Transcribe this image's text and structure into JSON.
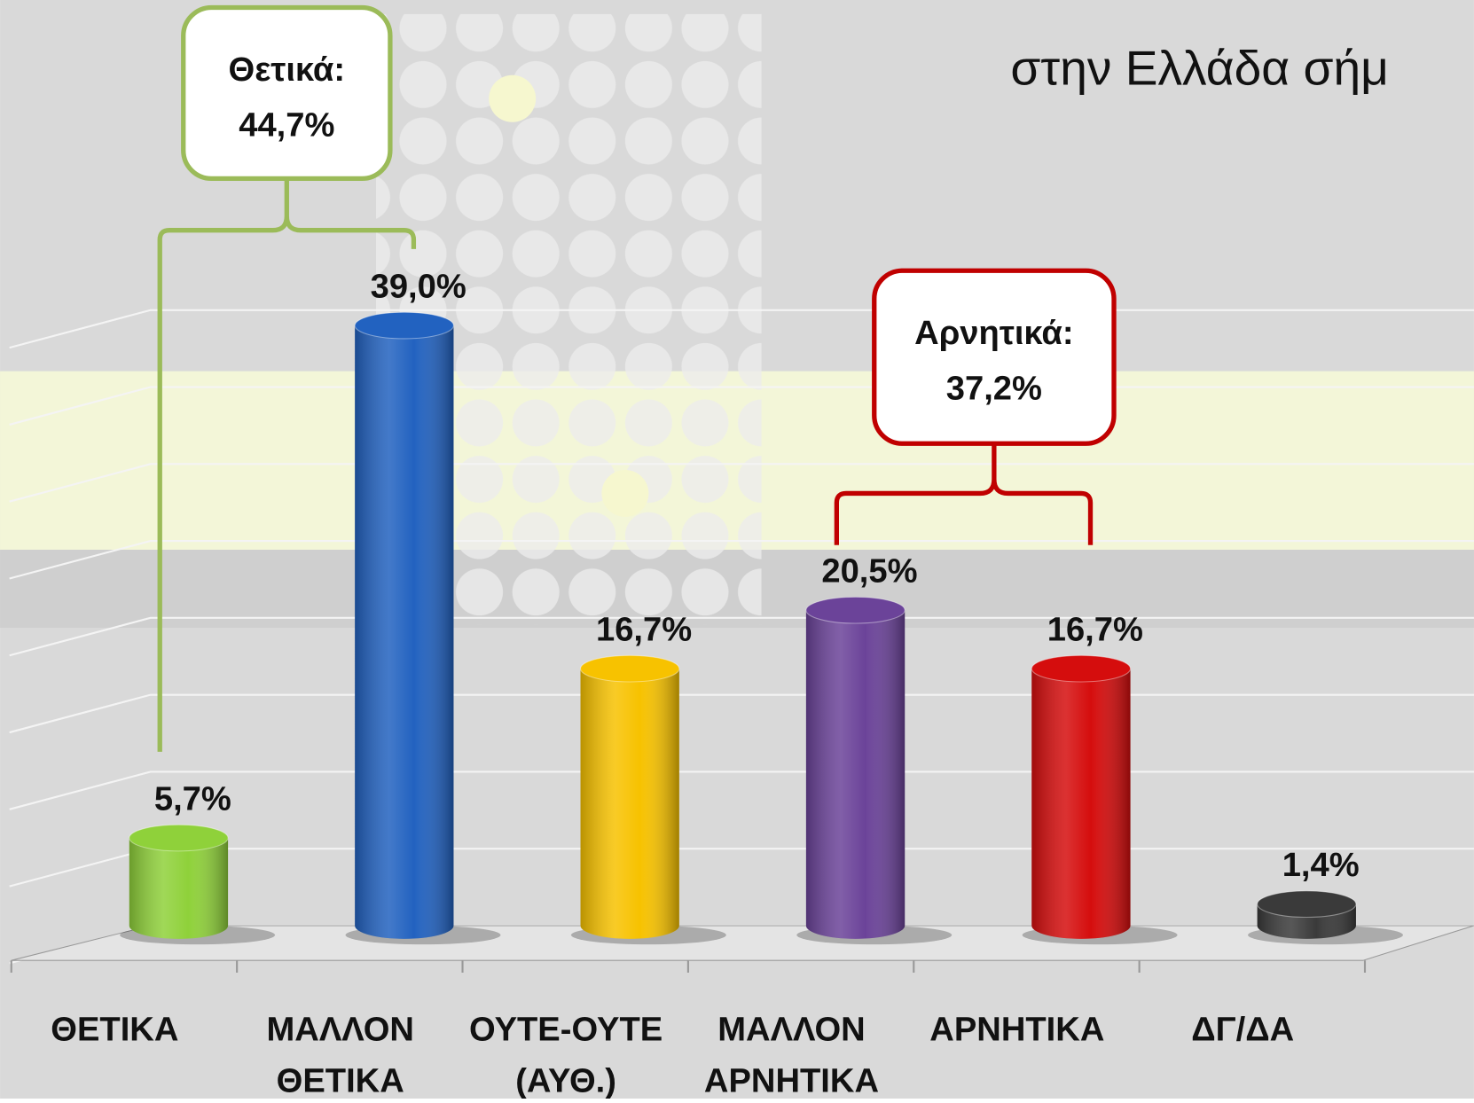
{
  "chart_data": {
    "type": "bar",
    "title": "στην Ελλάδα σήμ",
    "categories": [
      [
        "ΘΕΤΙΚΑ"
      ],
      [
        "ΜΑΛΛΟΝ",
        "ΘΕΤΙΚΑ"
      ],
      [
        "ΟΥΤΕ-ΟΥΤΕ",
        "(ΑΥΘ.)"
      ],
      [
        "ΜΑΛΛΟΝ",
        "ΑΡΝΗΤΙΚΑ"
      ],
      [
        "ΑΡΝΗΤΙΚΑ"
      ],
      [
        "ΔΓ/ΔΑ"
      ]
    ],
    "values": [
      5.7,
      39.0,
      16.7,
      20.5,
      16.7,
      1.4
    ],
    "value_labels": [
      "5,7%",
      "39,0%",
      "16,7%",
      "20,5%",
      "16,7%",
      "1,4%"
    ],
    "colors": [
      "#8fd13a",
      "#2262c0",
      "#f7c200",
      "#6b4399",
      "#d50d0d",
      "#3a3a3a"
    ],
    "ylim": [
      0,
      40
    ],
    "yticks": [
      0,
      5,
      10,
      15,
      20,
      25,
      30,
      35,
      40
    ],
    "grid": true,
    "annotations": [
      {
        "text": "Θετικά:",
        "value": 44.7,
        "value_label": "44,7%",
        "color": "#9bbb59",
        "categories_spanned": [
          0,
          1
        ]
      },
      {
        "text": "Αρνητικά:",
        "value": 37.2,
        "value_label": "37,2%",
        "color": "#c00000",
        "categories_spanned": [
          3,
          4
        ]
      }
    ]
  }
}
